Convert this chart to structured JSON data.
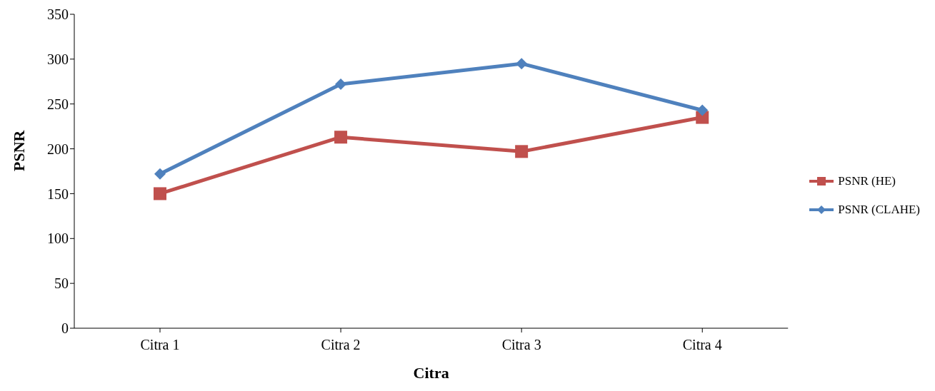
{
  "chart_data": {
    "type": "line",
    "xlabel": "Citra",
    "ylabel": "PSNR",
    "categories": [
      "Citra 1",
      "Citra 2",
      "Citra 3",
      "Citra 4"
    ],
    "series": [
      {
        "name": "PSNR (HE)",
        "color": "#c0504d",
        "marker": "square",
        "values": [
          150,
          213,
          197,
          235
        ]
      },
      {
        "name": "PSNR (CLAHE)",
        "color": "#4f81bd",
        "marker": "diamond",
        "values": [
          172,
          272,
          295,
          243
        ]
      }
    ],
    "ylim": [
      0,
      350
    ],
    "yticks": [
      0,
      50,
      100,
      150,
      200,
      250,
      300,
      350
    ],
    "grid": false,
    "legend": "right",
    "line_style": "solid"
  }
}
